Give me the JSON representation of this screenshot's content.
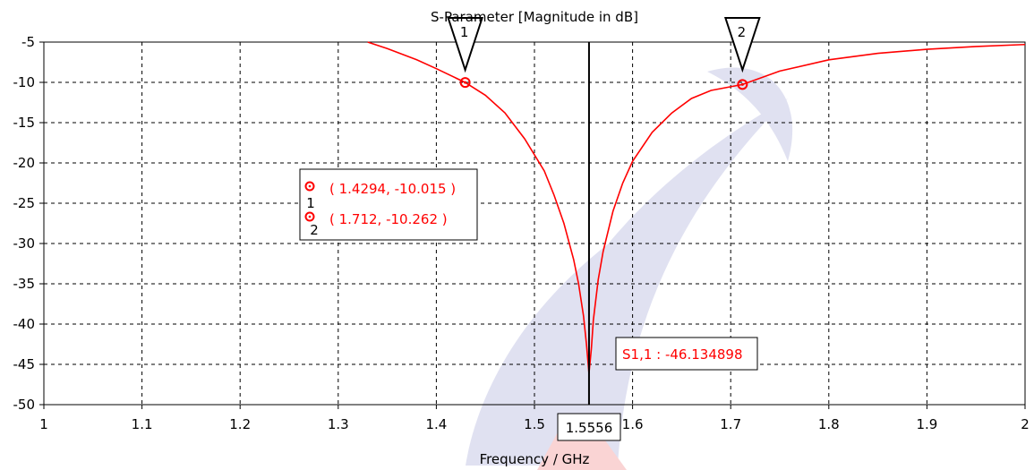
{
  "chart_data": {
    "type": "line",
    "title": "S-Parameter [Magnitude in dB]",
    "xlabel": "Frequency / GHz",
    "ylabel": "",
    "xlim": [
      1,
      2
    ],
    "ylim": [
      -50,
      -5
    ],
    "x_ticks": [
      1,
      1.1,
      1.2,
      1.3,
      1.4,
      1.5,
      1.6,
      1.7,
      1.8,
      1.9,
      2
    ],
    "x_tick_labels": [
      "1",
      "1.1",
      "1.2",
      "1.3",
      "1.4",
      "1.5",
      "1.6",
      "1.7",
      "1.8",
      "1.9",
      "2"
    ],
    "y_ticks": [
      -5,
      -10,
      -15,
      -20,
      -25,
      -30,
      -35,
      -40,
      -45,
      -50
    ],
    "y_tick_labels": [
      "-5",
      "-10",
      "-15",
      "-20",
      "-25",
      "-30",
      "-35",
      "-40",
      "-45",
      "-50"
    ],
    "grid": true,
    "line_color": "#ff0000",
    "series": [
      {
        "name": "S1,1",
        "x": [
          1.33,
          1.35,
          1.38,
          1.4,
          1.4294,
          1.45,
          1.47,
          1.49,
          1.51,
          1.52,
          1.53,
          1.54,
          1.545,
          1.55,
          1.553,
          1.5556,
          1.558,
          1.56,
          1.565,
          1.57,
          1.58,
          1.59,
          1.6,
          1.62,
          1.64,
          1.66,
          1.68,
          1.712,
          1.75,
          1.8,
          1.85,
          1.9,
          1.95,
          2.0
        ],
        "y": [
          -5.0,
          -5.8,
          -7.2,
          -8.3,
          -10.015,
          -11.6,
          -13.8,
          -17.0,
          -21.0,
          -24.0,
          -27.5,
          -32.0,
          -35.0,
          -39.0,
          -42.5,
          -46.134898,
          -43.0,
          -39.5,
          -34.5,
          -31.0,
          -26.0,
          -22.5,
          -19.8,
          -16.2,
          -13.8,
          -12.0,
          -11.0,
          -10.262,
          -8.6,
          -7.2,
          -6.4,
          -5.9,
          -5.55,
          -5.3
        ]
      }
    ],
    "markers": [
      {
        "id": "1",
        "x": 1.4294,
        "y": -10.015,
        "label": "( 1.4294, -10.015 )"
      },
      {
        "id": "2",
        "x": 1.712,
        "y": -10.262,
        "label": "( 1.712, -10.262 )"
      }
    ],
    "vertical_marker": {
      "x": 1.5556,
      "label": "1.5556"
    },
    "min_annotation": {
      "label": "S1,1 : -46.134898",
      "x": 1.5556,
      "y": -46.134898
    }
  }
}
